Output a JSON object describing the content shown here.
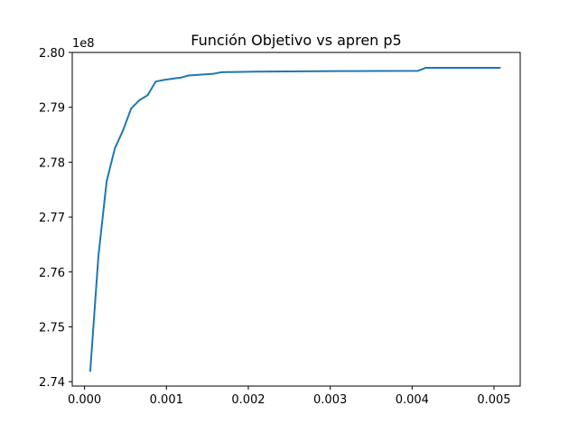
{
  "chart_data": {
    "type": "line",
    "title": "Función Objetivo vs apren p5",
    "xlabel": "",
    "ylabel": "",
    "y_offset_label": "1e8",
    "xlim": [
      -0.00015,
      0.00532
    ],
    "ylim": [
      273.92,
      280.0
    ],
    "x_ticks": [
      0.0,
      0.001,
      0.002,
      0.003,
      0.004,
      0.005
    ],
    "x_tick_labels": [
      "0.000",
      "0.001",
      "0.002",
      "0.003",
      "0.004",
      "0.005"
    ],
    "y_ticks": [
      274,
      275,
      276,
      277,
      278,
      279,
      280
    ],
    "y_tick_labels": [
      "2.74",
      "2.75",
      "2.76",
      "2.77",
      "2.78",
      "2.79",
      "2.80"
    ],
    "grid": false,
    "line_color": "#1f77b4",
    "series": [
      {
        "x": [
          7e-05,
          0.00017,
          0.00027,
          0.00037,
          0.00047,
          0.00057,
          0.00067,
          0.00077,
          0.00087,
          0.00097,
          0.00107,
          0.00117,
          0.00127,
          0.00137,
          0.00147,
          0.00157,
          0.00167,
          0.00207,
          0.00307,
          0.00407,
          0.00417,
          0.00507
        ],
        "values": [
          274.2,
          276.3,
          277.65,
          278.25,
          278.58,
          278.98,
          279.13,
          279.22,
          279.47,
          279.5,
          279.52,
          279.54,
          279.58,
          279.59,
          279.6,
          279.61,
          279.64,
          279.65,
          279.66,
          279.665,
          279.72,
          279.72
        ]
      }
    ]
  }
}
